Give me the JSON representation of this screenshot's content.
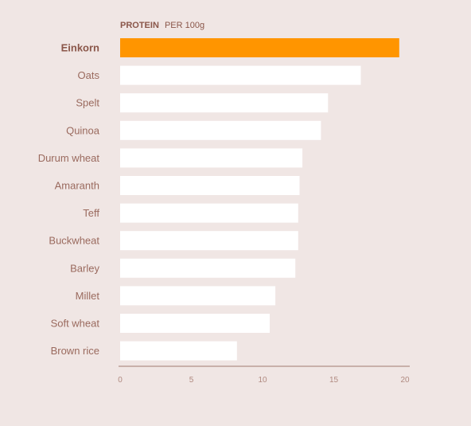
{
  "chart_data": {
    "type": "bar",
    "orientation": "horizontal",
    "title_bold": "PROTEIN",
    "title_rest": "PER 100g",
    "categories": [
      "Einkorn",
      "Oats",
      "Spelt",
      "Quinoa",
      "Durum wheat",
      "Amaranth",
      "Teff",
      "Buckwheat",
      "Barley",
      "Millet",
      "Soft wheat",
      "Brown rice"
    ],
    "values": [
      19.6,
      16.9,
      14.6,
      14.1,
      12.8,
      12.6,
      12.5,
      12.5,
      12.3,
      10.9,
      10.5,
      8.2
    ],
    "highlight": "Einkorn",
    "xlim": [
      0,
      20
    ],
    "xticks": [
      0,
      5,
      10,
      15,
      20
    ],
    "grid": false,
    "colors": {
      "background": "#f0e6e4",
      "highlight_bar": "#ff9500",
      "bar": "#ffffff",
      "label": "#9a6a5e",
      "highlight_label": "#8a5649",
      "axis": "#a07a70",
      "tick_label": "#b08a80"
    }
  }
}
